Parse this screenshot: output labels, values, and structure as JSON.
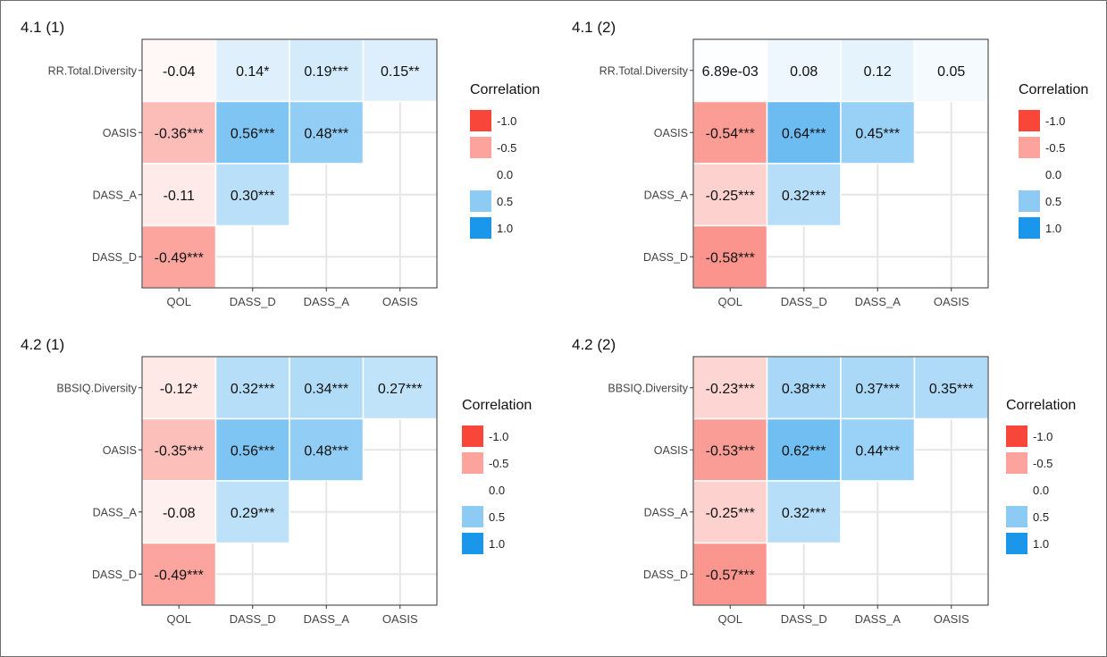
{
  "chart_data": [
    {
      "type": "heatmap",
      "title": "4.1 (1)",
      "x_categories": [
        "QOL",
        "DASS_D",
        "DASS_A",
        "OASIS"
      ],
      "y_categories": [
        "RR.Total.Diversity",
        "OASIS",
        "DASS_A",
        "DASS_D"
      ],
      "cells": [
        [
          {
            "value": -0.04,
            "label": "-0.04"
          },
          {
            "value": 0.14,
            "label": "0.14*"
          },
          {
            "value": 0.19,
            "label": "0.19***"
          },
          {
            "value": 0.15,
            "label": "0.15**"
          }
        ],
        [
          {
            "value": -0.36,
            "label": "-0.36***"
          },
          {
            "value": 0.56,
            "label": "0.56***"
          },
          {
            "value": 0.48,
            "label": "0.48***"
          },
          null
        ],
        [
          {
            "value": -0.11,
            "label": "-0.11"
          },
          {
            "value": 0.3,
            "label": "0.30***"
          },
          null,
          null
        ],
        [
          {
            "value": -0.49,
            "label": "-0.49***"
          },
          null,
          null,
          null
        ]
      ],
      "legend": {
        "title": "Correlation",
        "entries": [
          "-1.0",
          "-0.5",
          "0.0",
          "0.5",
          "1.0"
        ],
        "values": [
          -1.0,
          -0.5,
          0.0,
          0.5,
          1.0
        ],
        "position": "right"
      },
      "color_scale": {
        "low": "#f8473a",
        "mid": "#ffffff",
        "high": "#1a97ea"
      },
      "grid": true
    },
    {
      "type": "heatmap",
      "title": "4.1 (2)",
      "x_categories": [
        "QOL",
        "DASS_D",
        "DASS_A",
        "OASIS"
      ],
      "y_categories": [
        "RR.Total.Diversity",
        "OASIS",
        "DASS_A",
        "DASS_D"
      ],
      "cells": [
        [
          {
            "value": 0.00689,
            "label": "6.89e-03"
          },
          {
            "value": 0.08,
            "label": "0.08"
          },
          {
            "value": 0.12,
            "label": "0.12"
          },
          {
            "value": 0.05,
            "label": "0.05"
          }
        ],
        [
          {
            "value": -0.54,
            "label": "-0.54***"
          },
          {
            "value": 0.64,
            "label": "0.64***"
          },
          {
            "value": 0.45,
            "label": "0.45***"
          },
          null
        ],
        [
          {
            "value": -0.25,
            "label": "-0.25***"
          },
          {
            "value": 0.32,
            "label": "0.32***"
          },
          null,
          null
        ],
        [
          {
            "value": -0.58,
            "label": "-0.58***"
          },
          null,
          null,
          null
        ]
      ],
      "legend": {
        "title": "Correlation",
        "entries": [
          "-1.0",
          "-0.5",
          "0.0",
          "0.5",
          "1.0"
        ],
        "values": [
          -1.0,
          -0.5,
          0.0,
          0.5,
          1.0
        ],
        "position": "right"
      },
      "color_scale": {
        "low": "#f8473a",
        "mid": "#ffffff",
        "high": "#1a97ea"
      },
      "grid": true
    },
    {
      "type": "heatmap",
      "title": "4.2 (1)",
      "x_categories": [
        "QOL",
        "DASS_D",
        "DASS_A",
        "OASIS"
      ],
      "y_categories": [
        "BBSIQ.Diversity",
        "OASIS",
        "DASS_A",
        "DASS_D"
      ],
      "cells": [
        [
          {
            "value": -0.12,
            "label": "-0.12*"
          },
          {
            "value": 0.32,
            "label": "0.32***"
          },
          {
            "value": 0.34,
            "label": "0.34***"
          },
          {
            "value": 0.27,
            "label": "0.27***"
          }
        ],
        [
          {
            "value": -0.35,
            "label": "-0.35***"
          },
          {
            "value": 0.56,
            "label": "0.56***"
          },
          {
            "value": 0.48,
            "label": "0.48***"
          },
          null
        ],
        [
          {
            "value": -0.08,
            "label": "-0.08"
          },
          {
            "value": 0.29,
            "label": "0.29***"
          },
          null,
          null
        ],
        [
          {
            "value": -0.49,
            "label": "-0.49***"
          },
          null,
          null,
          null
        ]
      ],
      "legend": {
        "title": "Correlation",
        "entries": [
          "-1.0",
          "-0.5",
          "0.0",
          "0.5",
          "1.0"
        ],
        "values": [
          -1.0,
          -0.5,
          0.0,
          0.5,
          1.0
        ],
        "position": "right"
      },
      "color_scale": {
        "low": "#f8473a",
        "mid": "#ffffff",
        "high": "#1a97ea"
      },
      "grid": true
    },
    {
      "type": "heatmap",
      "title": "4.2 (2)",
      "x_categories": [
        "QOL",
        "DASS_D",
        "DASS_A",
        "OASIS"
      ],
      "y_categories": [
        "BBSIQ.Diversity",
        "OASIS",
        "DASS_A",
        "DASS_D"
      ],
      "cells": [
        [
          {
            "value": -0.23,
            "label": "-0.23***"
          },
          {
            "value": 0.38,
            "label": "0.38***"
          },
          {
            "value": 0.37,
            "label": "0.37***"
          },
          {
            "value": 0.35,
            "label": "0.35***"
          }
        ],
        [
          {
            "value": -0.53,
            "label": "-0.53***"
          },
          {
            "value": 0.62,
            "label": "0.62***"
          },
          {
            "value": 0.44,
            "label": "0.44***"
          },
          null
        ],
        [
          {
            "value": -0.25,
            "label": "-0.25***"
          },
          {
            "value": 0.32,
            "label": "0.32***"
          },
          null,
          null
        ],
        [
          {
            "value": -0.57,
            "label": "-0.57***"
          },
          null,
          null,
          null
        ]
      ],
      "legend": {
        "title": "Correlation",
        "entries": [
          "-1.0",
          "-0.5",
          "0.0",
          "0.5",
          "1.0"
        ],
        "values": [
          -1.0,
          -0.5,
          0.0,
          0.5,
          1.0
        ],
        "position": "right"
      },
      "color_scale": {
        "low": "#f8473a",
        "mid": "#ffffff",
        "high": "#1a97ea"
      },
      "grid": true
    }
  ]
}
